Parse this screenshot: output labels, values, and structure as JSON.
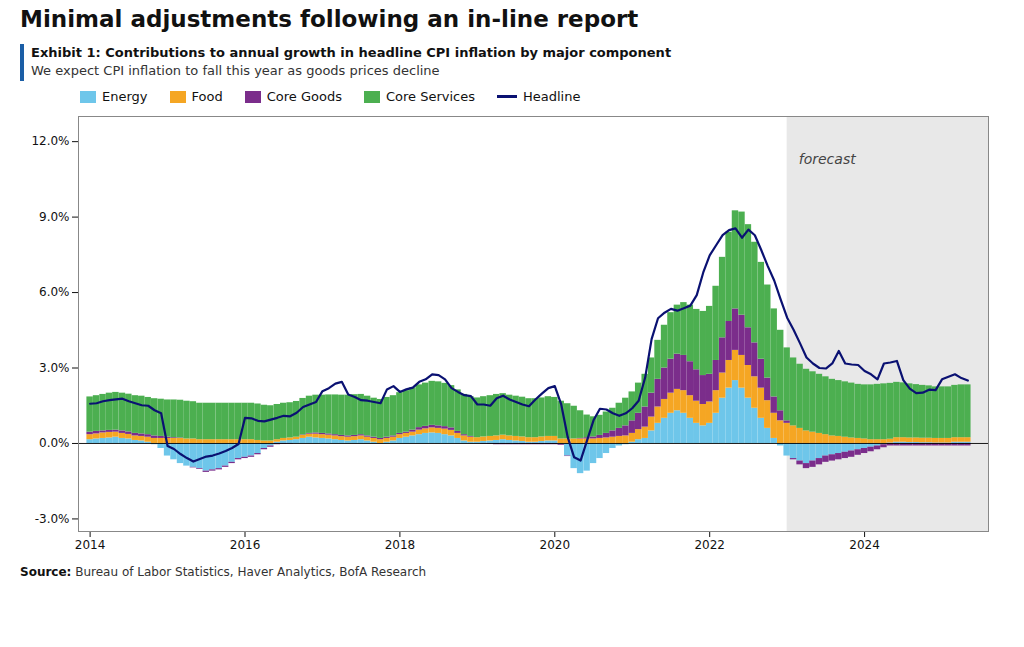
{
  "chart_data": {
    "type": "bar",
    "stacked": true,
    "title": "Minimal adjustments following an in-line report",
    "exhibit_title": "Exhibit 1: Contributions to annual growth in headline CPI inflation by major component",
    "subtitle": "We expect CPI inflation to fall this year as goods prices decline",
    "source_label": "Source:",
    "source": "Bureau of Labor Statistics, Haver Analytics, BofA Research",
    "legend": "upper left",
    "grid": false,
    "xlim": [
      2013.85,
      2025.6
    ],
    "xticks": [
      2014,
      2016,
      2018,
      2020,
      2022,
      2024
    ],
    "ylim": [
      -3.5,
      13.0
    ],
    "yticks": [
      {
        "value": -3.0,
        "label": "-3.0%"
      },
      {
        "value": 0.0,
        "label": "0.0%"
      },
      {
        "value": 3.0,
        "label": "3.0%"
      },
      {
        "value": 6.0,
        "label": "6.0%"
      },
      {
        "value": 9.0,
        "label": "9.0%"
      },
      {
        "value": 12.0,
        "label": "12.0%"
      }
    ],
    "spans": [
      {
        "start": 2023.0,
        "end": 2025.6,
        "color": "#e8e8e8"
      }
    ],
    "annotations": [
      {
        "text": "forecast",
        "x": 2023.15,
        "y": 11.5
      }
    ],
    "x": [
      2014.0,
      2014.083,
      2014.167,
      2014.25,
      2014.333,
      2014.417,
      2014.5,
      2014.583,
      2014.667,
      2014.75,
      2014.833,
      2014.917,
      2015.0,
      2015.083,
      2015.167,
      2015.25,
      2015.333,
      2015.417,
      2015.5,
      2015.583,
      2015.667,
      2015.75,
      2015.833,
      2015.917,
      2016.0,
      2016.083,
      2016.167,
      2016.25,
      2016.333,
      2016.417,
      2016.5,
      2016.583,
      2016.667,
      2016.75,
      2016.833,
      2016.917,
      2017.0,
      2017.083,
      2017.167,
      2017.25,
      2017.333,
      2017.417,
      2017.5,
      2017.583,
      2017.667,
      2017.75,
      2017.833,
      2017.917,
      2018.0,
      2018.083,
      2018.167,
      2018.25,
      2018.333,
      2018.417,
      2018.5,
      2018.583,
      2018.667,
      2018.75,
      2018.833,
      2018.917,
      2019.0,
      2019.083,
      2019.167,
      2019.25,
      2019.333,
      2019.417,
      2019.5,
      2019.583,
      2019.667,
      2019.75,
      2019.833,
      2019.917,
      2020.0,
      2020.083,
      2020.167,
      2020.25,
      2020.333,
      2020.417,
      2020.5,
      2020.583,
      2020.667,
      2020.75,
      2020.833,
      2020.917,
      2021.0,
      2021.083,
      2021.167,
      2021.25,
      2021.333,
      2021.417,
      2021.5,
      2021.583,
      2021.667,
      2021.75,
      2021.833,
      2021.917,
      2022.0,
      2022.083,
      2022.167,
      2022.25,
      2022.333,
      2022.417,
      2022.5,
      2022.583,
      2022.667,
      2022.75,
      2022.833,
      2022.917,
      2023.0,
      2023.083,
      2023.167,
      2023.25,
      2023.333,
      2023.417,
      2023.5,
      2023.583,
      2023.667,
      2023.75,
      2023.833,
      2023.917,
      2024.0,
      2024.083,
      2024.167,
      2024.25,
      2024.333,
      2024.417,
      2024.5,
      2024.583,
      2024.667,
      2024.75,
      2024.833,
      2024.917,
      2025.0,
      2025.083,
      2025.167,
      2025.25,
      2025.333
    ],
    "series": [
      {
        "name": "Energy",
        "type": "bar",
        "color": "#6EC6EA",
        "values": [
          0.15,
          0.18,
          0.2,
          0.22,
          0.25,
          0.2,
          0.18,
          0.12,
          0.1,
          0.05,
          -0.05,
          -0.2,
          -0.5,
          -0.65,
          -0.8,
          -0.9,
          -0.95,
          -1.0,
          -1.1,
          -1.05,
          -1.0,
          -0.9,
          -0.75,
          -0.6,
          -0.55,
          -0.5,
          -0.4,
          -0.2,
          -0.1,
          0.05,
          0.1,
          0.12,
          0.15,
          0.2,
          0.25,
          0.22,
          0.2,
          0.18,
          0.15,
          0.12,
          0.1,
          0.12,
          0.15,
          0.1,
          0.05,
          0.0,
          0.05,
          0.1,
          0.2,
          0.25,
          0.3,
          0.35,
          0.4,
          0.42,
          0.4,
          0.35,
          0.3,
          0.2,
          0.1,
          0.05,
          0.05,
          0.08,
          0.1,
          0.12,
          0.15,
          0.12,
          0.1,
          0.08,
          0.05,
          0.05,
          0.08,
          0.1,
          0.1,
          -0.05,
          -0.5,
          -1.0,
          -1.2,
          -1.1,
          -0.8,
          -0.6,
          -0.4,
          -0.2,
          -0.1,
          -0.05,
          0.05,
          0.15,
          0.2,
          0.5,
          0.8,
          1.0,
          1.2,
          1.3,
          1.2,
          1.0,
          0.8,
          0.7,
          0.8,
          1.2,
          1.8,
          2.2,
          2.5,
          2.2,
          1.8,
          1.4,
          1.0,
          0.6,
          0.2,
          -0.1,
          -0.5,
          -0.6,
          -0.7,
          -0.8,
          -0.7,
          -0.6,
          -0.5,
          -0.45,
          -0.4,
          -0.35,
          -0.3,
          -0.25,
          -0.2,
          -0.15,
          -0.1,
          -0.05,
          0.02,
          0.05,
          0.05,
          0.04,
          0.04,
          0.03,
          0.03,
          0.02,
          0.02,
          0.02,
          0.05,
          0.05,
          0.05
        ]
      },
      {
        "name": "Food",
        "type": "bar",
        "color": "#F5A623",
        "values": [
          0.2,
          0.2,
          0.22,
          0.22,
          0.2,
          0.2,
          0.18,
          0.18,
          0.18,
          0.2,
          0.2,
          0.2,
          0.2,
          0.2,
          0.2,
          0.18,
          0.18,
          0.15,
          0.15,
          0.15,
          0.15,
          0.15,
          0.15,
          0.15,
          0.15,
          0.15,
          0.12,
          0.1,
          0.1,
          0.1,
          0.1,
          0.1,
          0.1,
          0.12,
          0.12,
          0.15,
          0.15,
          0.15,
          0.15,
          0.15,
          0.15,
          0.15,
          0.15,
          0.15,
          0.15,
          0.15,
          0.15,
          0.15,
          0.15,
          0.15,
          0.15,
          0.18,
          0.18,
          0.2,
          0.2,
          0.22,
          0.22,
          0.2,
          0.2,
          0.2,
          0.18,
          0.18,
          0.18,
          0.18,
          0.18,
          0.18,
          0.18,
          0.18,
          0.18,
          0.18,
          0.18,
          0.18,
          0.18,
          0.18,
          0.18,
          0.18,
          0.18,
          0.18,
          0.18,
          0.2,
          0.22,
          0.25,
          0.28,
          0.3,
          0.35,
          0.4,
          0.45,
          0.55,
          0.65,
          0.75,
          0.8,
          0.85,
          0.9,
          0.9,
          0.88,
          0.85,
          0.85,
          0.9,
          1.0,
          1.1,
          1.2,
          1.3,
          1.3,
          1.25,
          1.2,
          1.1,
          1.0,
          0.9,
          0.8,
          0.7,
          0.6,
          0.5,
          0.45,
          0.4,
          0.35,
          0.3,
          0.28,
          0.25,
          0.22,
          0.2,
          0.18,
          0.15,
          0.15,
          0.15,
          0.15,
          0.18,
          0.18,
          0.18,
          0.18,
          0.18,
          0.18,
          0.18,
          0.18,
          0.18,
          0.18,
          0.18,
          0.18
        ]
      },
      {
        "name": "Core Goods",
        "type": "bar",
        "color": "#7B2D8B",
        "values": [
          0.1,
          0.1,
          0.08,
          0.08,
          0.08,
          0.1,
          0.1,
          0.1,
          0.1,
          0.1,
          0.1,
          0.08,
          0.05,
          0.03,
          0.02,
          0.0,
          -0.02,
          -0.03,
          -0.05,
          -0.05,
          -0.05,
          -0.05,
          -0.05,
          -0.05,
          -0.05,
          -0.05,
          -0.05,
          -0.05,
          -0.05,
          -0.05,
          -0.03,
          -0.02,
          0.0,
          0.02,
          0.03,
          0.05,
          0.05,
          0.05,
          0.05,
          0.05,
          0.05,
          0.05,
          0.05,
          0.05,
          0.05,
          0.05,
          0.05,
          0.05,
          0.05,
          0.05,
          0.08,
          0.1,
          0.1,
          0.1,
          0.1,
          0.1,
          0.1,
          0.08,
          0.05,
          0.03,
          0.0,
          -0.02,
          -0.03,
          -0.05,
          -0.05,
          -0.05,
          -0.05,
          -0.05,
          -0.05,
          -0.05,
          -0.05,
          -0.05,
          -0.05,
          -0.03,
          -0.02,
          0.0,
          0.02,
          0.05,
          0.08,
          0.12,
          0.18,
          0.25,
          0.32,
          0.4,
          0.5,
          0.65,
          0.8,
          0.95,
          1.1,
          1.25,
          1.35,
          1.4,
          1.4,
          1.35,
          1.25,
          1.15,
          1.1,
          1.2,
          1.4,
          1.55,
          1.65,
          1.6,
          1.5,
          1.35,
          1.15,
          0.9,
          0.65,
          0.4,
          0.1,
          -0.05,
          -0.15,
          -0.2,
          -0.25,
          -0.25,
          -0.25,
          -0.25,
          -0.25,
          -0.25,
          -0.25,
          -0.22,
          -0.2,
          -0.18,
          -0.15,
          -0.12,
          -0.1,
          -0.1,
          -0.1,
          -0.1,
          -0.1,
          -0.1,
          -0.1,
          -0.1,
          -0.1,
          -0.1,
          -0.1,
          -0.1,
          -0.1
        ]
      },
      {
        "name": "Core Services",
        "type": "bar",
        "color": "#4CAF50",
        "values": [
          1.4,
          1.42,
          1.45,
          1.48,
          1.5,
          1.5,
          1.5,
          1.5,
          1.5,
          1.48,
          1.48,
          1.48,
          1.48,
          1.5,
          1.5,
          1.5,
          1.48,
          1.45,
          1.45,
          1.45,
          1.45,
          1.45,
          1.45,
          1.45,
          1.45,
          1.45,
          1.45,
          1.42,
          1.4,
          1.4,
          1.4,
          1.4,
          1.42,
          1.45,
          1.48,
          1.5,
          1.52,
          1.55,
          1.58,
          1.6,
          1.62,
          1.62,
          1.6,
          1.58,
          1.55,
          1.55,
          1.58,
          1.6,
          1.62,
          1.65,
          1.68,
          1.7,
          1.72,
          1.75,
          1.75,
          1.72,
          1.68,
          1.65,
          1.6,
          1.58,
          1.58,
          1.6,
          1.62,
          1.65,
          1.65,
          1.62,
          1.6,
          1.58,
          1.55,
          1.55,
          1.55,
          1.58,
          1.55,
          1.5,
          1.4,
          1.3,
          1.1,
          0.9,
          0.8,
          0.8,
          0.85,
          0.9,
          1.0,
          1.1,
          1.15,
          1.2,
          1.3,
          1.4,
          1.55,
          1.7,
          1.85,
          1.95,
          2.1,
          2.25,
          2.4,
          2.55,
          2.7,
          2.95,
          3.2,
          3.55,
          3.9,
          4.1,
          4.1,
          4.0,
          3.85,
          3.7,
          3.5,
          3.2,
          2.9,
          2.7,
          2.55,
          2.45,
          2.4,
          2.35,
          2.3,
          2.25,
          2.22,
          2.2,
          2.18,
          2.15,
          2.15,
          2.18,
          2.2,
          2.22,
          2.22,
          2.2,
          2.18,
          2.15,
          2.12,
          2.1,
          2.08,
          2.05,
          2.05,
          2.05,
          2.08,
          2.1,
          2.1
        ]
      },
      {
        "name": "Headline",
        "type": "line",
        "color": "#0A1172",
        "values": [
          1.58,
          1.6,
          1.68,
          1.72,
          1.75,
          1.78,
          1.68,
          1.6,
          1.52,
          1.5,
          1.32,
          1.2,
          -0.1,
          -0.22,
          -0.42,
          -0.58,
          -0.72,
          -0.62,
          -0.52,
          -0.48,
          -0.4,
          -0.3,
          -0.18,
          -0.02,
          1.02,
          1.0,
          0.9,
          0.88,
          0.95,
          1.02,
          1.1,
          1.08,
          1.22,
          1.45,
          1.55,
          1.65,
          2.08,
          2.2,
          2.38,
          2.45,
          1.95,
          1.85,
          1.72,
          1.7,
          1.65,
          1.6,
          2.15,
          2.28,
          2.05,
          2.15,
          2.22,
          2.45,
          2.55,
          2.75,
          2.72,
          2.55,
          2.2,
          2.05,
          1.92,
          1.88,
          1.55,
          1.55,
          1.5,
          1.8,
          1.9,
          1.75,
          1.65,
          1.55,
          1.48,
          1.75,
          1.98,
          2.2,
          2.28,
          1.55,
          0.25,
          -0.55,
          -0.68,
          0.12,
          0.92,
          1.38,
          1.35,
          1.2,
          1.1,
          1.2,
          1.4,
          1.7,
          2.62,
          4.15,
          4.98,
          5.2,
          5.35,
          5.28,
          5.38,
          5.48,
          5.9,
          6.8,
          7.48,
          7.88,
          8.28,
          8.48,
          8.55,
          8.18,
          8.5,
          8.28,
          7.68,
          7.05,
          6.48,
          5.72,
          5.0,
          4.52,
          3.98,
          3.42,
          3.18,
          3.0,
          2.98,
          3.18,
          3.68,
          3.18,
          3.14,
          3.12,
          2.88,
          2.75,
          2.55,
          3.18,
          3.22,
          3.28,
          2.52,
          2.18,
          2.0,
          2.02,
          2.14,
          2.12,
          2.55,
          2.65,
          2.75,
          2.6,
          2.5
        ]
      }
    ]
  }
}
